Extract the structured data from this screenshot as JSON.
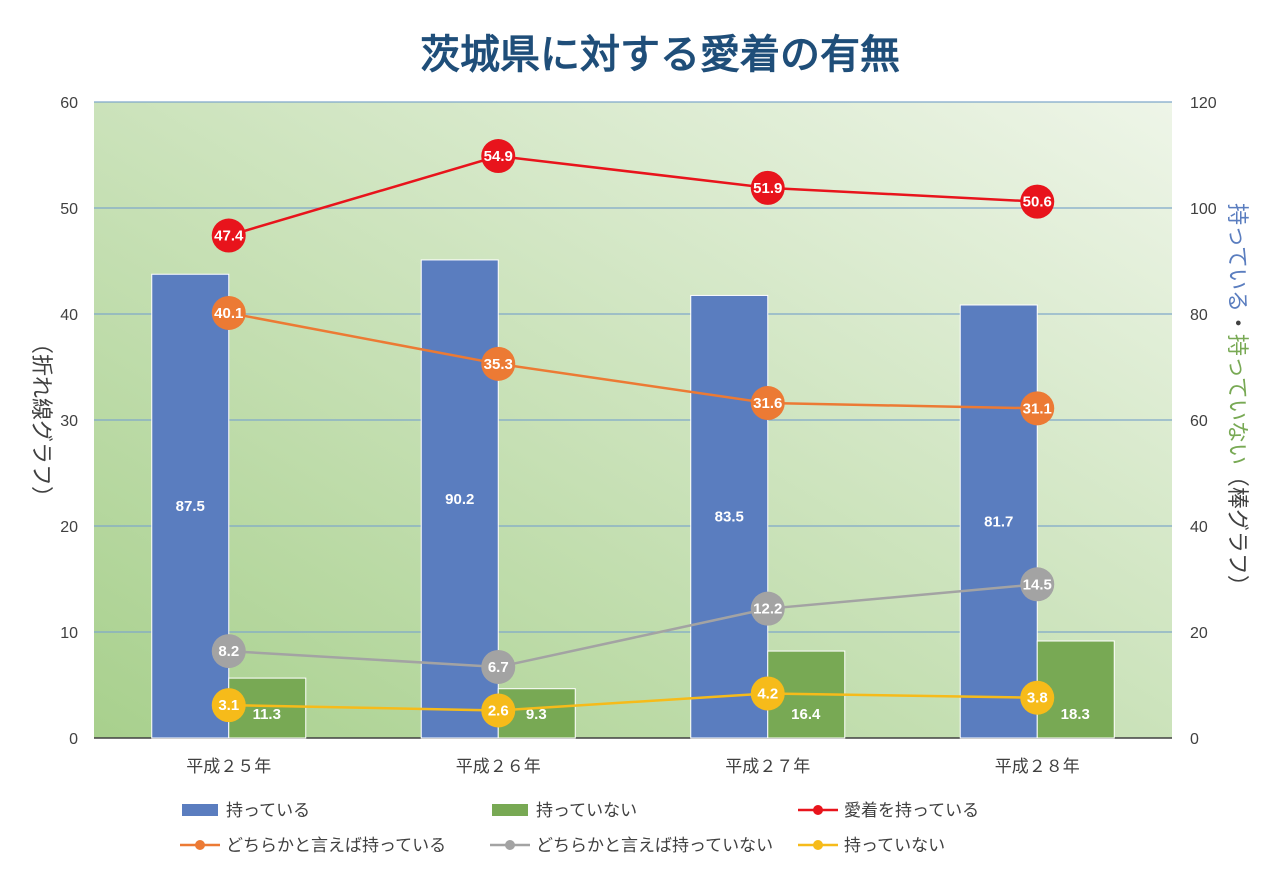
{
  "chart_data": {
    "type": "bar",
    "title": "茨城県に対する愛着の有無",
    "categories": [
      "平成２５年",
      "平成２６年",
      "平成２７年",
      "平成２８年"
    ],
    "y_left": {
      "label": "（折れ線グラフ）",
      "ylim": [
        0,
        60
      ],
      "ticks": [
        "0",
        "10",
        "20",
        "30",
        "40",
        "50",
        "60"
      ]
    },
    "y_right": {
      "label_parts": [
        "持っている",
        "・",
        "持っていない",
        "（棒グラフ）"
      ],
      "ylim": [
        0,
        120
      ],
      "ticks": [
        "0",
        "20",
        "40",
        "60",
        "80",
        "100",
        "120"
      ]
    },
    "bar_series": [
      {
        "name": "持っている",
        "axis": "right",
        "color": "#5a7dbf",
        "values": [
          87.5,
          90.2,
          83.5,
          81.7
        ],
        "labels": [
          "87.5",
          "90.2",
          "83.5",
          "81.7"
        ]
      },
      {
        "name": "持っていない",
        "axis": "right",
        "color": "#78a954",
        "values": [
          11.3,
          9.3,
          16.4,
          18.3
        ],
        "labels": [
          "11.3",
          "9.3",
          "16.4",
          "18.3"
        ]
      }
    ],
    "line_series": [
      {
        "name": "愛着を持っている",
        "axis": "left",
        "color": "#e8141c",
        "values": [
          47.4,
          54.9,
          51.9,
          50.6
        ],
        "labels": [
          "47.4",
          "54.9",
          "51.9",
          "50.6"
        ]
      },
      {
        "name": "どちらかと言えば持っている",
        "axis": "left",
        "color": "#ec7a34",
        "values": [
          40.1,
          35.3,
          31.6,
          31.1
        ],
        "labels": [
          "40.1",
          "35.3",
          "31.6",
          "31.1"
        ]
      },
      {
        "name": "どちらかと言えば持っていない",
        "axis": "left",
        "color": "#a3a3a3",
        "values": [
          8.2,
          6.7,
          12.2,
          14.5
        ],
        "labels": [
          "8.2",
          "6.7",
          "12.2",
          "14.5"
        ]
      },
      {
        "name": "持っていない",
        "axis": "left",
        "color": "#f6bb1a",
        "values": [
          3.1,
          2.6,
          4.2,
          3.8
        ],
        "labels": [
          "3.1",
          "2.6",
          "4.2",
          "3.8"
        ]
      }
    ],
    "legend": [
      "持っている",
      "持っていない",
      "愛着を持っている",
      "どちらかと言えば持っている",
      "どちらかと言えば持っていない",
      "持っていない"
    ],
    "legend_position": "bottom",
    "grid": true
  },
  "colors": {
    "title": "#1f4e79",
    "grid": "#7fa8c9",
    "plot_bg_from": "#a8d08d",
    "plot_bg_to": "#eef5e8",
    "axis_blue": "#5a7dbf",
    "axis_green": "#78a954"
  }
}
